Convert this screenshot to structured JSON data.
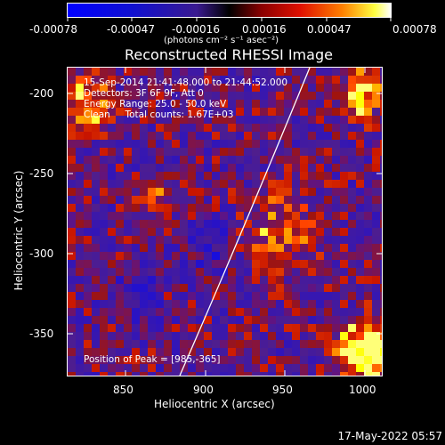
{
  "colorbar": {
    "ticks": [
      "-0.00078",
      "-0.00047",
      "-0.00016",
      "0.00016",
      "0.00047",
      "0.00078"
    ],
    "label": "(photons cm⁻² s⁻¹ asec⁻²)"
  },
  "title": "Reconstructed RHESSI Image",
  "info": {
    "line1": "15-Sep-2014 21:41:48.000 to 21:44:52.000",
    "line2": "Detectors: 3F 6F 9F, Att 0",
    "line3": "Energy Range: 25.0 - 50.0 keV",
    "line4": "Clean     Total counts: 1.67E+03"
  },
  "peak": "Position of Peak = [985,-365]",
  "x_axis": {
    "label": "Heliocentric X (arcsec)",
    "ticks": [
      "850",
      "900",
      "950",
      "1000"
    ]
  },
  "y_axis": {
    "label": "Heliocentric Y (arcsec)",
    "ticks": [
      "-200",
      "-250",
      "-300",
      "-350"
    ]
  },
  "timestamp": "17-May-2022 05:57",
  "colors": {
    "background": "#000000",
    "limb": "#ffffff"
  }
}
